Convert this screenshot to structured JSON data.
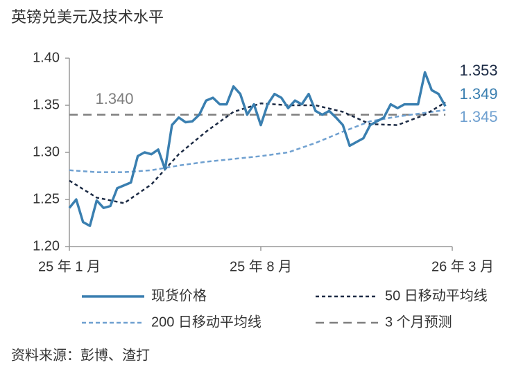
{
  "chart_data": {
    "type": "line",
    "title": "英镑兑美元及技术水平",
    "source": "资料来源：彭博、渣打",
    "ylim": [
      1.2,
      1.4
    ],
    "yticks": [
      {
        "value": 1.2,
        "label": "1.20"
      },
      {
        "value": 1.25,
        "label": "1.25"
      },
      {
        "value": 1.3,
        "label": "1.30"
      },
      {
        "value": 1.35,
        "label": "1.35"
      },
      {
        "value": 1.4,
        "label": "1.40"
      }
    ],
    "xlim": [
      0,
      14
    ],
    "xticks": [
      {
        "value": 0,
        "label": "25 年 1 月"
      },
      {
        "value": 7,
        "label": "25 年 8 月"
      },
      {
        "value": 14,
        "label": "26 年 3 月"
      }
    ],
    "series": [
      {
        "name": "现货价格",
        "color": "#3a7fb0",
        "width": 3.5,
        "dash": "",
        "end_label": "1.349",
        "x": [
          0,
          0.25,
          0.5,
          0.75,
          1,
          1.25,
          1.5,
          1.75,
          2,
          2.25,
          2.5,
          2.75,
          3,
          3.25,
          3.5,
          3.75,
          4,
          4.25,
          4.5,
          4.75,
          5,
          5.25,
          5.5,
          5.75,
          6,
          6.25,
          6.5,
          6.75,
          7,
          7.25,
          7.5,
          7.75,
          8,
          8.25,
          8.5,
          8.75,
          9,
          9.25,
          9.5,
          9.75,
          10,
          10.25,
          10.5,
          10.75,
          11,
          11.25,
          11.5,
          11.75,
          12,
          12.25,
          12.5,
          12.75,
          13,
          13.25,
          13.5,
          13.75
        ],
        "values": [
          1.241,
          1.25,
          1.226,
          1.222,
          1.249,
          1.241,
          1.243,
          1.262,
          1.265,
          1.268,
          1.296,
          1.3,
          1.298,
          1.303,
          1.282,
          1.329,
          1.337,
          1.332,
          1.333,
          1.34,
          1.355,
          1.358,
          1.351,
          1.351,
          1.37,
          1.362,
          1.34,
          1.351,
          1.329,
          1.351,
          1.362,
          1.358,
          1.347,
          1.355,
          1.351,
          1.362,
          1.344,
          1.34,
          1.344,
          1.337,
          1.329,
          1.307,
          1.311,
          1.315,
          1.329,
          1.333,
          1.337,
          1.351,
          1.347,
          1.351,
          1.351,
          1.351,
          1.385,
          1.366,
          1.362,
          1.349
        ]
      },
      {
        "name": "50 日移动平均线",
        "color": "#1b2a44",
        "width": 2.5,
        "dash": "5 4",
        "end_label": "1.353",
        "x": [
          0,
          1,
          2,
          3,
          4,
          5,
          6,
          7,
          8,
          9,
          10,
          11,
          12,
          13,
          13.75
        ],
        "values": [
          1.27,
          1.252,
          1.246,
          1.266,
          1.298,
          1.322,
          1.343,
          1.352,
          1.35,
          1.35,
          1.343,
          1.33,
          1.329,
          1.34,
          1.353
        ]
      },
      {
        "name": "200 日移动平均线",
        "color": "#6fa0d0",
        "width": 2.5,
        "dash": "6 4",
        "end_label": "1.345",
        "x": [
          0,
          1,
          2,
          3,
          4,
          5,
          6,
          7,
          8,
          9,
          10,
          11,
          12,
          13,
          13.75
        ],
        "values": [
          1.281,
          1.279,
          1.279,
          1.281,
          1.286,
          1.29,
          1.293,
          1.296,
          1.3,
          1.31,
          1.322,
          1.333,
          1.338,
          1.342,
          1.345
        ]
      },
      {
        "name": "3 个月预测",
        "color": "#7f7f7f",
        "width": 2.5,
        "dash": "12 8",
        "end_label": "1.340",
        "x": [
          0,
          13.75
        ],
        "values": [
          1.34,
          1.34
        ]
      }
    ]
  }
}
